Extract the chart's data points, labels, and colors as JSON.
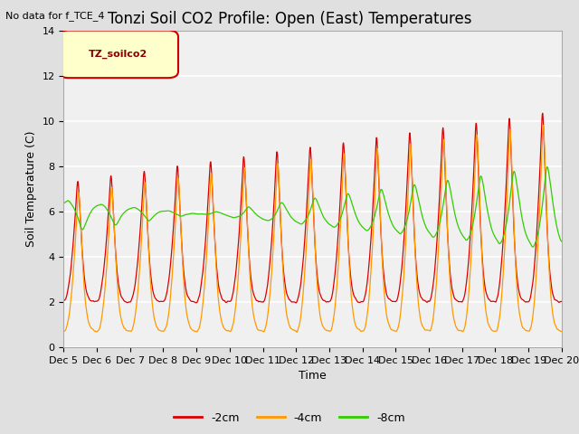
{
  "title": "Tonzi Soil CO2 Profile: Open (East) Temperatures",
  "suptitle": "No data for f_TCE_4",
  "ylabel": "Soil Temperature (C)",
  "xlabel": "Time",
  "legend_label": "TZ_soilco2",
  "ylim": [
    0,
    14
  ],
  "series_labels": [
    "-2cm",
    "-4cm",
    "-8cm"
  ],
  "series_colors": [
    "#dd0000",
    "#ff9900",
    "#33cc00"
  ],
  "tick_labels": [
    "Dec 5",
    "Dec 6",
    "Dec 7",
    "Dec 8",
    "Dec 9",
    "Dec 10",
    "Dec 11",
    "Dec 12",
    "Dec 13",
    "Dec 14",
    "Dec 15",
    "Dec 16",
    "Dec 17",
    "Dec 18",
    "Dec 19",
    "Dec 20"
  ],
  "background_color": "#e0e0e0",
  "plot_bg_color": "#f0f0f0",
  "title_fontsize": 12,
  "axis_fontsize": 9,
  "tick_fontsize": 8
}
